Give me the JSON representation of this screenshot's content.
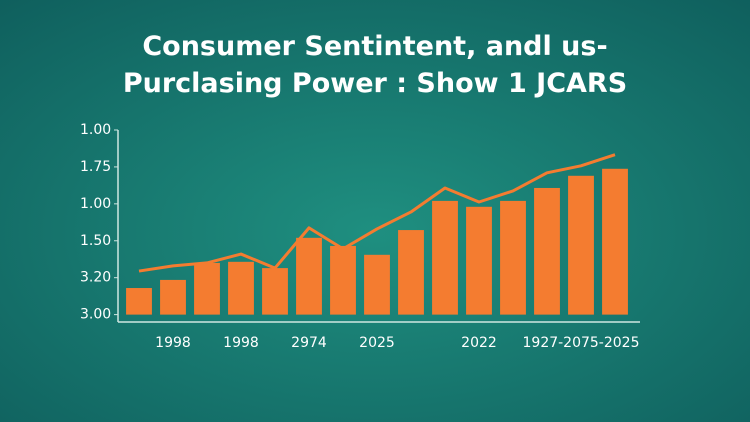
{
  "chart_data": {
    "type": "bar",
    "title": "Consumer Sentintent, andl us-",
    "subtitle": "Purclasing Power : Show 1 JCARS",
    "categories": [
      null,
      "1998",
      null,
      "1998",
      null,
      "2974",
      null,
      "2025",
      null,
      null,
      "2022",
      null,
      null,
      "1927-2075-2025",
      null
    ],
    "series": [
      {
        "type": "bar",
        "color": "#f47c30",
        "values": [
          0.72,
          0.94,
          1.4,
          1.43,
          1.26,
          2.08,
          1.86,
          1.62,
          2.29,
          3.08,
          2.92,
          3.08,
          3.43,
          3.76,
          3.95
        ]
      },
      {
        "type": "line",
        "color": "#f47c30",
        "values": [
          1.18,
          1.32,
          1.4,
          1.64,
          1.26,
          2.35,
          1.78,
          2.32,
          2.78,
          3.43,
          3.05,
          3.35,
          3.84,
          4.03,
          4.33
        ]
      }
    ],
    "ylim": [
      -0.2,
      5
    ],
    "yticks": [
      {
        "value": 0,
        "label": "3.00"
      },
      {
        "value": 1,
        "label": "3.20"
      },
      {
        "value": 2,
        "label": "1.50"
      },
      {
        "value": 3,
        "label": "1.00"
      },
      {
        "value": 4,
        "label": "1.75"
      },
      {
        "value": 5,
        "label": "1.00"
      }
    ]
  }
}
